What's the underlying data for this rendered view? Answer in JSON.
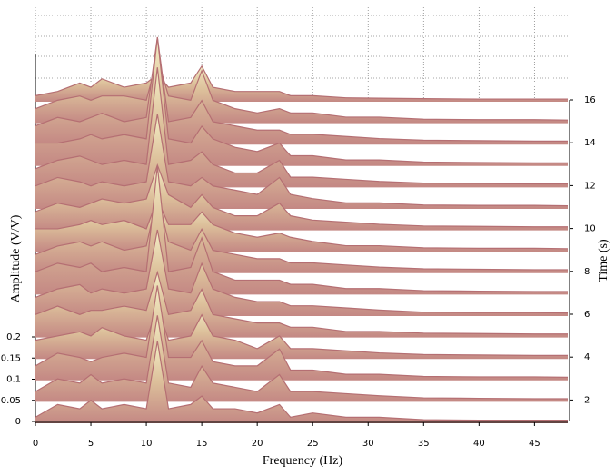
{
  "chart_data": {
    "type": "waterfall",
    "xlabel": "Frequency (Hz)",
    "ylabel": "Amplitude (V/V)",
    "zlabel": "Time (s)",
    "x": [
      0,
      2,
      4,
      5,
      6,
      8,
      10,
      11,
      12,
      14,
      15,
      16,
      18,
      20,
      22,
      23,
      25,
      28,
      31,
      35,
      40,
      45,
      48
    ],
    "xlim": [
      0,
      48
    ],
    "xticks": [
      0,
      5,
      10,
      15,
      20,
      25,
      30,
      35,
      40,
      45
    ],
    "ylim": [
      0,
      0.2
    ],
    "yticks": [
      0,
      0.05,
      0.1,
      0.15,
      0.2
    ],
    "z": [
      1,
      2,
      3,
      4,
      5,
      6,
      7,
      8,
      9,
      10,
      11,
      12,
      13,
      14,
      15,
      16
    ],
    "zlim": [
      1,
      16
    ],
    "zticks": [
      2,
      4,
      6,
      8,
      10,
      12,
      14,
      16
    ],
    "grid": true,
    "color": "#b56f73",
    "values": [
      [
        0.01,
        0.04,
        0.03,
        0.05,
        0.03,
        0.04,
        0.03,
        0.19,
        0.03,
        0.04,
        0.06,
        0.03,
        0.03,
        0.02,
        0.04,
        0.01,
        0.02,
        0.01,
        0.01,
        0.004,
        0.003,
        0.003,
        0.003
      ],
      [
        0.02,
        0.05,
        0.04,
        0.06,
        0.04,
        0.05,
        0.04,
        0.2,
        0.04,
        0.03,
        0.08,
        0.04,
        0.03,
        0.02,
        0.06,
        0.02,
        0.02,
        0.015,
        0.01,
        0.005,
        0.004,
        0.003,
        0.003
      ],
      [
        0.03,
        0.06,
        0.05,
        0.04,
        0.05,
        0.06,
        0.05,
        0.22,
        0.05,
        0.05,
        0.09,
        0.04,
        0.03,
        0.03,
        0.07,
        0.02,
        0.02,
        0.01,
        0.01,
        0.005,
        0.004,
        0.004,
        0.003
      ],
      [
        0.04,
        0.05,
        0.06,
        0.05,
        0.07,
        0.05,
        0.04,
        0.12,
        0.04,
        0.05,
        0.1,
        0.05,
        0.04,
        0.02,
        0.05,
        0.02,
        0.02,
        0.015,
        0.01,
        0.006,
        0.005,
        0.004,
        0.004
      ],
      [
        0.05,
        0.07,
        0.05,
        0.06,
        0.06,
        0.07,
        0.06,
        0.15,
        0.05,
        0.06,
        0.11,
        0.05,
        0.04,
        0.03,
        0.03,
        0.02,
        0.02,
        0.01,
        0.01,
        0.006,
        0.005,
        0.004,
        0.004
      ],
      [
        0.04,
        0.06,
        0.07,
        0.05,
        0.06,
        0.05,
        0.06,
        0.2,
        0.06,
        0.05,
        0.12,
        0.06,
        0.04,
        0.03,
        0.03,
        0.02,
        0.02,
        0.015,
        0.01,
        0.005,
        0.004,
        0.004,
        0.003
      ],
      [
        0.05,
        0.07,
        0.06,
        0.07,
        0.05,
        0.06,
        0.05,
        0.3,
        0.05,
        0.06,
        0.13,
        0.05,
        0.03,
        0.03,
        0.03,
        0.02,
        0.02,
        0.01,
        0.01,
        0.005,
        0.004,
        0.003,
        0.003
      ],
      [
        0.04,
        0.06,
        0.07,
        0.06,
        0.07,
        0.05,
        0.06,
        0.18,
        0.07,
        0.05,
        0.1,
        0.05,
        0.04,
        0.03,
        0.03,
        0.02,
        0.02,
        0.015,
        0.01,
        0.006,
        0.005,
        0.004,
        0.004
      ],
      [
        0.05,
        0.05,
        0.06,
        0.07,
        0.06,
        0.07,
        0.05,
        0.12,
        0.06,
        0.06,
        0.09,
        0.06,
        0.04,
        0.03,
        0.04,
        0.03,
        0.02,
        0.01,
        0.01,
        0.005,
        0.004,
        0.004,
        0.003
      ],
      [
        0.04,
        0.06,
        0.05,
        0.06,
        0.07,
        0.06,
        0.07,
        0.15,
        0.08,
        0.05,
        0.08,
        0.05,
        0.03,
        0.03,
        0.06,
        0.03,
        0.02,
        0.015,
        0.01,
        0.006,
        0.005,
        0.004,
        0.004
      ],
      [
        0.05,
        0.07,
        0.06,
        0.05,
        0.06,
        0.05,
        0.06,
        0.22,
        0.06,
        0.05,
        0.07,
        0.05,
        0.04,
        0.03,
        0.07,
        0.03,
        0.02,
        0.01,
        0.01,
        0.005,
        0.004,
        0.004,
        0.003
      ],
      [
        0.04,
        0.06,
        0.07,
        0.06,
        0.05,
        0.06,
        0.05,
        0.28,
        0.05,
        0.06,
        0.08,
        0.05,
        0.03,
        0.03,
        0.06,
        0.02,
        0.02,
        0.015,
        0.01,
        0.006,
        0.005,
        0.004,
        0.004
      ],
      [
        0.05,
        0.05,
        0.06,
        0.07,
        0.06,
        0.07,
        0.06,
        0.3,
        0.06,
        0.05,
        0.09,
        0.06,
        0.04,
        0.03,
        0.05,
        0.02,
        0.02,
        0.01,
        0.01,
        0.005,
        0.004,
        0.003,
        0.003
      ],
      [
        0.04,
        0.06,
        0.05,
        0.06,
        0.07,
        0.05,
        0.06,
        0.25,
        0.05,
        0.06,
        0.1,
        0.05,
        0.04,
        0.03,
        0.03,
        0.02,
        0.02,
        0.015,
        0.01,
        0.006,
        0.005,
        0.004,
        0.004
      ],
      [
        0.03,
        0.05,
        0.06,
        0.05,
        0.06,
        0.06,
        0.05,
        0.15,
        0.06,
        0.05,
        0.12,
        0.05,
        0.03,
        0.02,
        0.03,
        0.02,
        0.02,
        0.01,
        0.01,
        0.005,
        0.004,
        0.004,
        0.003
      ],
      [
        0.01,
        0.02,
        0.04,
        0.03,
        0.05,
        0.03,
        0.04,
        0.06,
        0.03,
        0.04,
        0.08,
        0.03,
        0.02,
        0.02,
        0.02,
        0.01,
        0.01,
        0.005,
        0.004,
        0.003,
        0.002,
        0.002,
        0.002
      ]
    ]
  }
}
